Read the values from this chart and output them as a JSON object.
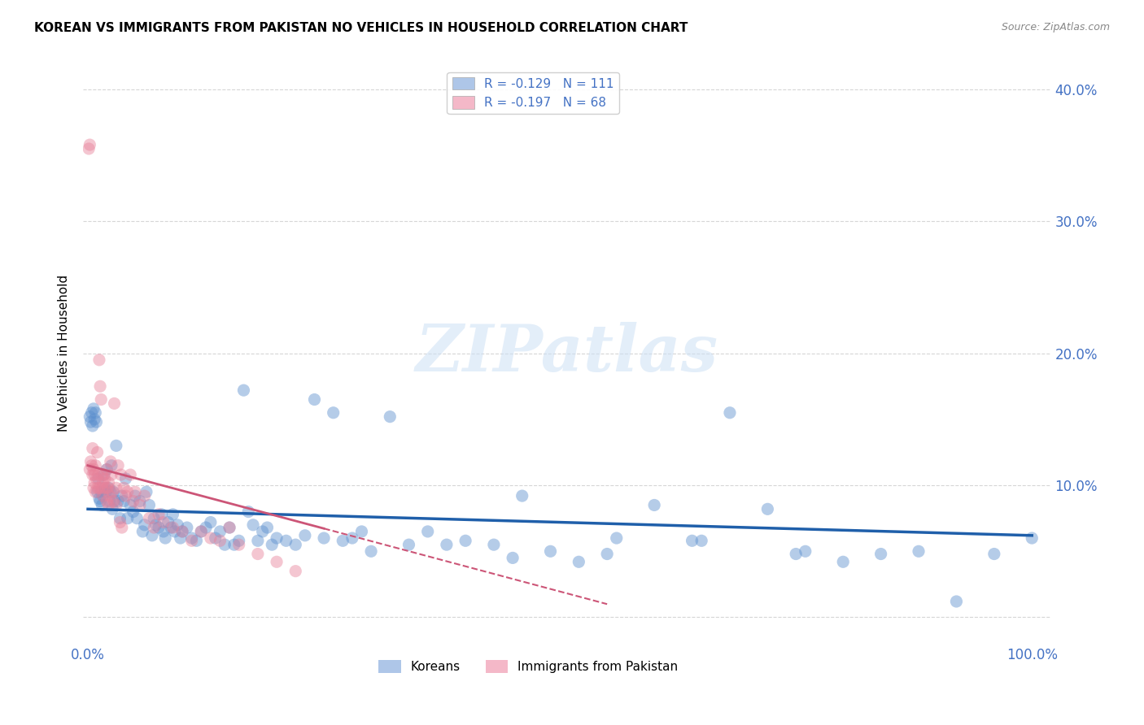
{
  "title": "KOREAN VS IMMIGRANTS FROM PAKISTAN NO VEHICLES IN HOUSEHOLD CORRELATION CHART",
  "source": "Source: ZipAtlas.com",
  "ylabel": "No Vehicles in Household",
  "xlim": [
    -0.005,
    1.02
  ],
  "ylim": [
    -0.02,
    0.42
  ],
  "yticks": [
    0.0,
    0.1,
    0.2,
    0.3,
    0.4
  ],
  "ytick_labels_right": [
    "",
    "10.0%",
    "20.0%",
    "30.0%",
    "40.0%"
  ],
  "xticks": [
    0.0,
    0.25,
    0.5,
    0.75,
    1.0
  ],
  "xtick_labels": [
    "0.0%",
    "",
    "",
    "",
    "100.0%"
  ],
  "blue_scatter_color": "#5b8fce",
  "pink_scatter_color": "#e8829a",
  "blue_line_color": "#1f5faa",
  "pink_line_color": "#cc5577",
  "watermark": "ZIPatlas",
  "koreans_x": [
    0.002,
    0.003,
    0.004,
    0.005,
    0.006,
    0.007,
    0.008,
    0.009,
    0.01,
    0.011,
    0.012,
    0.013,
    0.014,
    0.015,
    0.016,
    0.017,
    0.018,
    0.019,
    0.02,
    0.022,
    0.023,
    0.024,
    0.025,
    0.026,
    0.027,
    0.028,
    0.03,
    0.032,
    0.034,
    0.036,
    0.038,
    0.04,
    0.042,
    0.045,
    0.048,
    0.05,
    0.052,
    0.055,
    0.058,
    0.06,
    0.062,
    0.065,
    0.068,
    0.07,
    0.072,
    0.075,
    0.078,
    0.08,
    0.082,
    0.085,
    0.088,
    0.09,
    0.092,
    0.095,
    0.098,
    0.1,
    0.105,
    0.11,
    0.115,
    0.12,
    0.125,
    0.13,
    0.135,
    0.14,
    0.145,
    0.15,
    0.155,
    0.16,
    0.165,
    0.17,
    0.175,
    0.18,
    0.185,
    0.19,
    0.195,
    0.2,
    0.21,
    0.22,
    0.23,
    0.24,
    0.25,
    0.26,
    0.27,
    0.28,
    0.29,
    0.3,
    0.32,
    0.34,
    0.36,
    0.38,
    0.4,
    0.43,
    0.46,
    0.49,
    0.52,
    0.56,
    0.6,
    0.64,
    0.68,
    0.72,
    0.76,
    0.8,
    0.84,
    0.88,
    0.92,
    0.96,
    1.0,
    0.45,
    0.55,
    0.65,
    0.75
  ],
  "koreans_y": [
    0.152,
    0.148,
    0.155,
    0.145,
    0.158,
    0.15,
    0.155,
    0.148,
    0.095,
    0.105,
    0.09,
    0.088,
    0.095,
    0.085,
    0.092,
    0.108,
    0.098,
    0.095,
    0.112,
    0.098,
    0.088,
    0.095,
    0.115,
    0.082,
    0.095,
    0.088,
    0.13,
    0.088,
    0.075,
    0.092,
    0.088,
    0.105,
    0.075,
    0.085,
    0.08,
    0.092,
    0.075,
    0.088,
    0.065,
    0.07,
    0.095,
    0.085,
    0.062,
    0.075,
    0.07,
    0.068,
    0.078,
    0.065,
    0.06,
    0.072,
    0.068,
    0.078,
    0.065,
    0.07,
    0.06,
    0.065,
    0.068,
    0.06,
    0.058,
    0.065,
    0.068,
    0.072,
    0.06,
    0.065,
    0.055,
    0.068,
    0.055,
    0.058,
    0.172,
    0.08,
    0.07,
    0.058,
    0.065,
    0.068,
    0.055,
    0.06,
    0.058,
    0.055,
    0.062,
    0.165,
    0.06,
    0.155,
    0.058,
    0.06,
    0.065,
    0.05,
    0.152,
    0.055,
    0.065,
    0.055,
    0.058,
    0.055,
    0.092,
    0.05,
    0.042,
    0.06,
    0.085,
    0.058,
    0.155,
    0.082,
    0.05,
    0.042,
    0.048,
    0.05,
    0.012,
    0.048,
    0.06,
    0.045,
    0.048,
    0.058,
    0.048
  ],
  "pakistan_x": [
    0.001,
    0.002,
    0.002,
    0.003,
    0.004,
    0.005,
    0.005,
    0.006,
    0.006,
    0.007,
    0.007,
    0.008,
    0.008,
    0.009,
    0.01,
    0.01,
    0.011,
    0.012,
    0.012,
    0.013,
    0.014,
    0.015,
    0.015,
    0.016,
    0.016,
    0.017,
    0.018,
    0.019,
    0.02,
    0.02,
    0.021,
    0.022,
    0.022,
    0.023,
    0.024,
    0.025,
    0.026,
    0.027,
    0.028,
    0.03,
    0.03,
    0.032,
    0.034,
    0.035,
    0.036,
    0.038,
    0.04,
    0.042,
    0.045,
    0.048,
    0.05,
    0.055,
    0.06,
    0.065,
    0.07,
    0.075,
    0.08,
    0.09,
    0.1,
    0.11,
    0.12,
    0.13,
    0.14,
    0.15,
    0.16,
    0.18,
    0.2,
    0.22
  ],
  "pakistan_y": [
    0.355,
    0.358,
    0.112,
    0.118,
    0.115,
    0.128,
    0.108,
    0.112,
    0.098,
    0.108,
    0.102,
    0.115,
    0.095,
    0.105,
    0.125,
    0.098,
    0.108,
    0.195,
    0.098,
    0.175,
    0.165,
    0.098,
    0.108,
    0.092,
    0.102,
    0.108,
    0.105,
    0.098,
    0.112,
    0.088,
    0.098,
    0.102,
    0.085,
    0.092,
    0.118,
    0.108,
    0.095,
    0.088,
    0.162,
    0.098,
    0.085,
    0.115,
    0.072,
    0.108,
    0.068,
    0.098,
    0.092,
    0.095,
    0.108,
    0.088,
    0.095,
    0.085,
    0.092,
    0.075,
    0.068,
    0.078,
    0.072,
    0.068,
    0.065,
    0.058,
    0.065,
    0.06,
    0.058,
    0.068,
    0.055,
    0.048,
    0.042,
    0.035
  ],
  "blue_line_x0": 0.0,
  "blue_line_y0": 0.082,
  "blue_line_x1": 1.0,
  "blue_line_y1": 0.062,
  "pink_line_x0": 0.0,
  "pink_line_y0": 0.115,
  "pink_line_x1": 0.55,
  "pink_line_y1": 0.01
}
